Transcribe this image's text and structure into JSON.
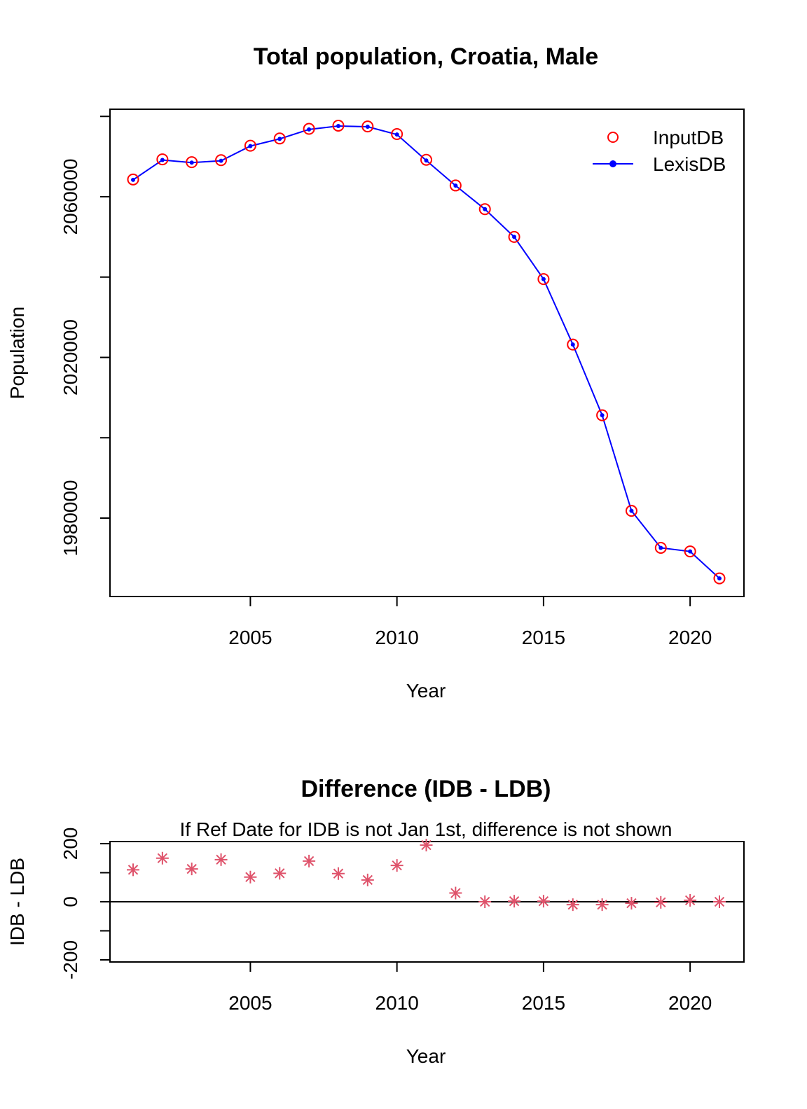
{
  "chart_data": [
    {
      "type": "line",
      "title": "Total population, Croatia, Male",
      "xlabel": "Year",
      "ylabel": "Population",
      "xlim": [
        2001,
        2021
      ],
      "ylim": [
        1968000,
        2088000
      ],
      "x_ticks": [
        2005,
        2010,
        2015,
        2020
      ],
      "y_ticks": [
        1980000,
        2000000,
        2020000,
        2040000,
        2060000,
        2080000
      ],
      "y_tick_labels": [
        "1980000",
        "",
        "2020000",
        "",
        "2060000",
        ""
      ],
      "grid": false,
      "legend": "top-right",
      "x": [
        2001,
        2002,
        2003,
        2004,
        2005,
        2006,
        2007,
        2008,
        2009,
        2010,
        2011,
        2012,
        2013,
        2014,
        2015,
        2016,
        2017,
        2018,
        2019,
        2020,
        2021
      ],
      "series": [
        {
          "name": "InputDB",
          "style": "points",
          "marker": "open-circle",
          "color": "#ff0000",
          "values": [
            2064300,
            2069300,
            2068600,
            2069100,
            2072700,
            2074500,
            2076900,
            2077700,
            2077500,
            2075600,
            2069200,
            2062800,
            2056900,
            2050000,
            2039500,
            2023200,
            2005600,
            1981800,
            1972600,
            1971700,
            1965000
          ]
        },
        {
          "name": "LexisDB",
          "style": "line-points",
          "marker": "filled-circle",
          "color": "#0000ff",
          "values": [
            2064200,
            2069150,
            2068490,
            2068960,
            2072620,
            2074400,
            2076760,
            2077600,
            2077420,
            2075480,
            2069010,
            2062770,
            2056900,
            2050000,
            2039500,
            2023210,
            2005610,
            1981800,
            1972600,
            1971690,
            1965000
          ]
        }
      ]
    },
    {
      "type": "scatter",
      "title": "Difference (IDB - LDB)",
      "subtitle": "If Ref Date for IDB is not Jan 1st, difference is not shown",
      "xlabel": "Year",
      "ylabel": "IDB - LDB",
      "xlim": [
        2001,
        2021
      ],
      "ylim": [
        -210,
        210
      ],
      "x_ticks": [
        2005,
        2010,
        2015,
        2020
      ],
      "y_ticks": [
        -200,
        -100,
        0,
        100,
        200
      ],
      "y_tick_labels": [
        "-200",
        "",
        "0",
        "",
        "200"
      ],
      "reference_line": 0,
      "grid": false,
      "marker": "asterisk",
      "color": "#df536b",
      "x": [
        2001,
        2002,
        2003,
        2004,
        2005,
        2006,
        2007,
        2008,
        2009,
        2010,
        2011,
        2012,
        2013,
        2014,
        2015,
        2016,
        2017,
        2018,
        2019,
        2020,
        2021
      ],
      "values": [
        110,
        150,
        113,
        145,
        85,
        98,
        140,
        97,
        75,
        125,
        195,
        30,
        0,
        2,
        2,
        -10,
        -10,
        -5,
        -2,
        5,
        0
      ]
    }
  ]
}
